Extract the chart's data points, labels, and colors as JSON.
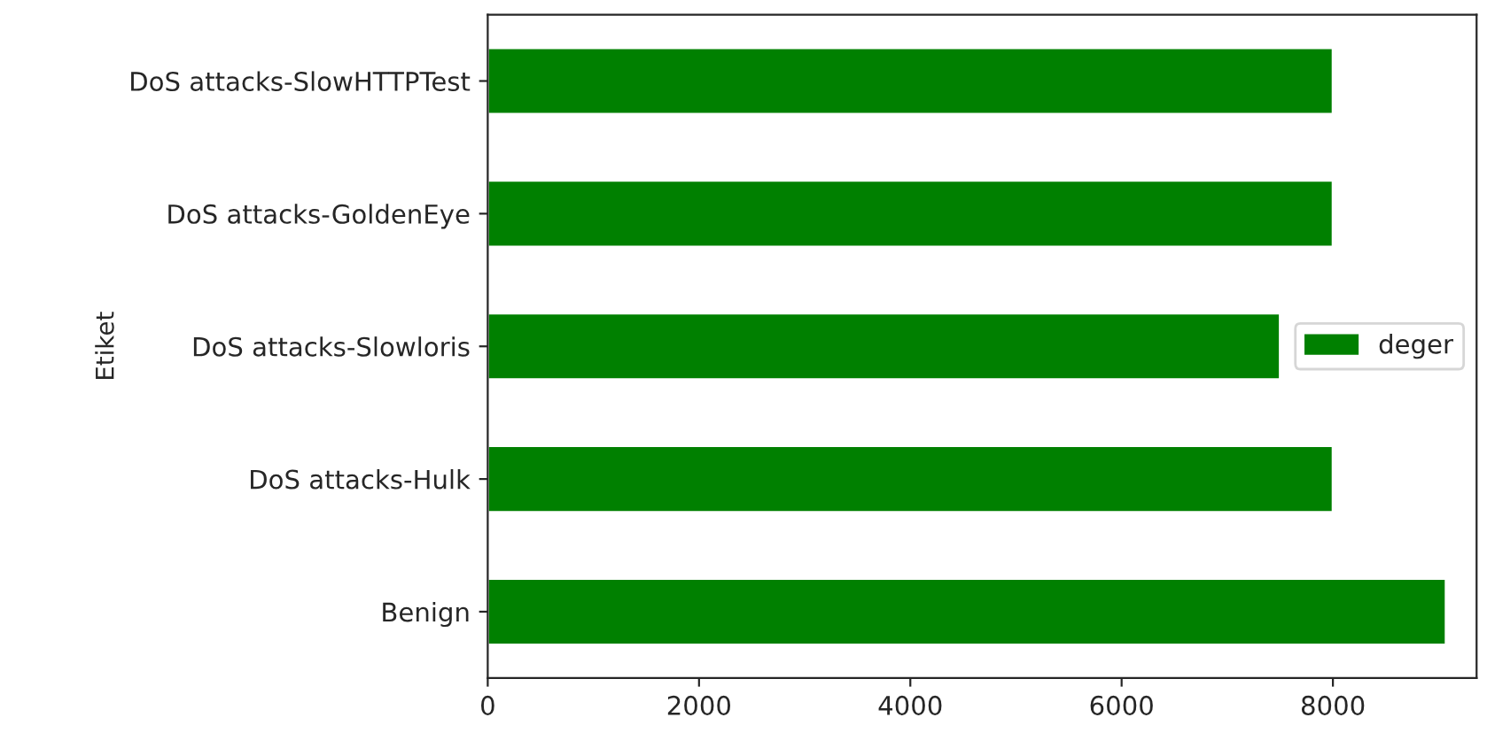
{
  "chart_data": {
    "type": "bar",
    "orientation": "horizontal",
    "ylabel": "Etiket",
    "categories": [
      "DoS attacks-SlowHTTPTest",
      "DoS attacks-GoldenEye",
      "DoS attacks-Slowloris",
      "DoS attacks-Hulk",
      "Benign"
    ],
    "series": [
      {
        "name": "deger",
        "color": "#008000",
        "values": [
          8000,
          8000,
          7500,
          8000,
          9070
        ]
      }
    ],
    "xlim": [
      0,
      9360
    ],
    "xticks": [
      0,
      2000,
      4000,
      6000,
      8000
    ],
    "legend": "right",
    "grid": false
  }
}
